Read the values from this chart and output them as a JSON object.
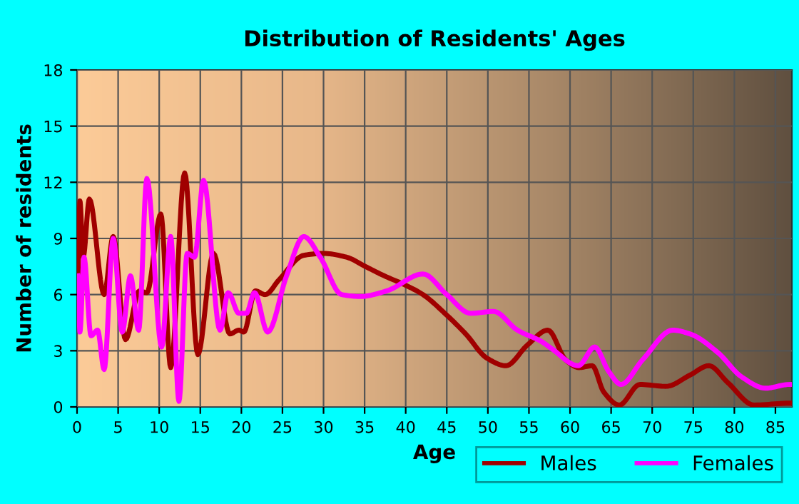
{
  "chart_data": {
    "type": "line",
    "title": "Distribution of Residents' Ages",
    "xlabel": "Age",
    "ylabel": "Number of residents",
    "xlim": [
      0,
      87
    ],
    "ylim": [
      0,
      18
    ],
    "xticks": [
      0,
      5,
      10,
      15,
      20,
      25,
      30,
      35,
      40,
      45,
      50,
      55,
      60,
      65,
      70,
      75,
      80,
      85
    ],
    "yticks": [
      0,
      3,
      6,
      9,
      12,
      15,
      18
    ],
    "grid": true,
    "legend": "bottom right",
    "line_style": "solid",
    "marker": "none",
    "series": [
      {
        "name": "Males",
        "color": "#a00000",
        "x": [
          0.1,
          0.35,
          0.75,
          1.5,
          3.3,
          4.4,
          5.9,
          7.6,
          8.5,
          10.2,
          11.4,
          13.1,
          14.7,
          16.6,
          18.6,
          19.7,
          20.3,
          21.7,
          22.9,
          24.6,
          27.6,
          30,
          32.8,
          35.1,
          37.4,
          40,
          42.1,
          45,
          47.3,
          49.9,
          52.2,
          54.8,
          57.3,
          59.5,
          61.1,
          62.7,
          64.1,
          66.0,
          68.5,
          71.7,
          74.6,
          76.9,
          79.2,
          82.4,
          86.7
        ],
        "values": [
          7,
          11,
          8,
          11.1,
          6,
          9.1,
          3.6,
          6.2,
          6.1,
          10.3,
          2.1,
          12.5,
          2.8,
          8.2,
          3.9,
          4.1,
          4,
          6.2,
          6,
          6.8,
          8.1,
          8.2,
          8,
          7.5,
          7,
          6.5,
          6,
          4.9,
          3.9,
          2.6,
          2.2,
          3.3,
          4.1,
          2.5,
          2.1,
          2.2,
          0.8,
          0.1,
          1.2,
          1.1,
          1.7,
          2.2,
          1.3,
          0.1,
          0.2
        ]
      },
      {
        "name": "Females",
        "color": "#ff00ff",
        "x": [
          0.1,
          0.35,
          0.85,
          1.7,
          2.5,
          3.3,
          4.4,
          5.5,
          6.5,
          7.5,
          8.5,
          10.3,
          11.4,
          12.4,
          13.4,
          14.3,
          15.4,
          17.4,
          18.4,
          19.7,
          20.6,
          21.6,
          23.2,
          25.5,
          27.6,
          29.6,
          32.2,
          34.5,
          37.7,
          42.1,
          45,
          47.9,
          50.7,
          53.6,
          56.5,
          57.8,
          61.0,
          63.0,
          64.7,
          66.2,
          68.8,
          72.5,
          74.6,
          78.0,
          80.9,
          83.8,
          86.7
        ],
        "values": [
          7,
          4,
          8,
          3.8,
          4.1,
          2,
          9,
          4,
          7,
          4.1,
          12.2,
          3.2,
          9.1,
          0.3,
          8.2,
          8,
          12.1,
          4.1,
          6.1,
          5,
          5,
          6.1,
          4,
          7,
          9.1,
          8,
          6,
          5.9,
          6.2,
          7.1,
          6,
          5,
          5.1,
          4.1,
          3.5,
          3.1,
          2.2,
          3.2,
          1.9,
          1.2,
          2.5,
          4.1,
          3.9,
          2.9,
          1.6,
          1.0,
          1.2
        ]
      }
    ]
  }
}
